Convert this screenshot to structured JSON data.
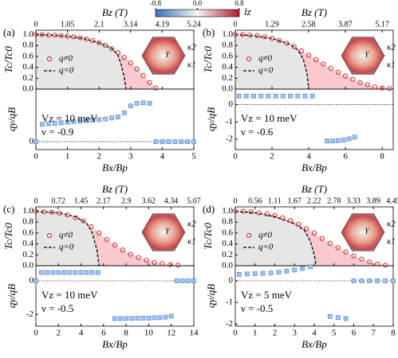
{
  "colorbar": {
    "label": "lz",
    "lim": [
      -0.8,
      0.8
    ],
    "ticks": [
      -0.8,
      {
        "value": 0,
        "label": "0.0"
      },
      0.8
    ]
  },
  "chart_data": [
    {
      "type": "scatter",
      "label": "(a)",
      "xlabel": "Bx/Bp",
      "x2label": "Bz (T)",
      "ylabel": "Tc/Tc0",
      "xlim": [
        0,
        5
      ],
      "xticks": [
        0,
        1,
        2,
        3,
        4,
        5
      ],
      "x2lim": [
        0,
        5.24
      ],
      "x2ticks": [
        0,
        1.05,
        2.1,
        3.14,
        4.19,
        5.24
      ],
      "ylim": [
        0,
        1.08
      ],
      "yticks": [
        {
          "value": 0,
          "label": "0.0"
        },
        {
          "value": 0.2,
          "label": "0.2"
        },
        {
          "value": 0.4,
          "label": "0.4"
        },
        {
          "value": 0.6,
          "label": "0.6"
        },
        {
          "value": 0.8,
          "label": "0.8"
        },
        {
          "value": 1,
          "label": "1.0"
        }
      ],
      "inset_labels": [
        "κ2",
        "γ",
        "κ1"
      ],
      "series": [
        {
          "name": "q≠0",
          "color": "#d62728",
          "x": [
            0,
            0.2,
            0.4,
            0.6,
            0.8,
            1.0,
            1.2,
            1.4,
            1.6,
            1.8,
            2.0,
            2.2,
            2.4,
            2.6,
            2.8,
            3.0,
            3.2,
            3.4,
            3.6,
            3.8
          ],
          "values": [
            1.0,
            1.0,
            0.99,
            0.99,
            0.98,
            0.97,
            0.96,
            0.94,
            0.92,
            0.89,
            0.85,
            0.8,
            0.74,
            0.67,
            0.58,
            0.48,
            0.37,
            0.25,
            0.12,
            0.02
          ]
        },
        {
          "name": "q=0",
          "color": "#000000",
          "x": [
            0,
            0.5,
            1,
            1.5,
            2,
            2.4,
            2.6,
            2.7,
            2.8,
            2.85
          ],
          "values": [
            1,
            0.99,
            0.97,
            0.93,
            0.85,
            0.75,
            0.62,
            0.45,
            0.2,
            0
          ]
        }
      ],
      "lower": {
        "ylabel": "qy/qB",
        "ylim": [
          -0.15,
          1.0
        ],
        "yticks": [
          0
        ],
        "color": "#5b8fd6",
        "x": [
          0,
          0.2,
          0.4,
          0.6,
          0.8,
          1.0,
          1.2,
          1.4,
          1.6,
          1.8,
          2.0,
          2.2,
          2.4,
          2.6,
          2.8,
          3.0,
          3.2,
          3.4,
          3.6,
          3.8,
          4.0,
          4.2,
          4.4,
          4.6,
          4.8,
          5.0
        ],
        "values": [
          0,
          0.33,
          0.34,
          0.35,
          0.36,
          0.37,
          0.38,
          0.39,
          0.4,
          0.41,
          0.42,
          0.43,
          0.45,
          0.47,
          0.55,
          0.68,
          0.73,
          0.74,
          0.73,
          0,
          0,
          0,
          0,
          0,
          0,
          0
        ]
      },
      "annotations": [
        "Vz = 10 meV",
        "ν = -0.9"
      ]
    },
    {
      "type": "scatter",
      "label": "(b)",
      "xlabel": "Bx/Bp",
      "x2label": "Bz (T)",
      "ylabel": "Tc/Tc0",
      "xlim": [
        0,
        8.6
      ],
      "xticks": [
        0,
        2,
        4,
        6,
        8
      ],
      "x2lim": [
        0,
        5.56
      ],
      "x2ticks": [
        0,
        1.29,
        2.58,
        3.87,
        5.17
      ],
      "ylim": [
        0,
        1.08
      ],
      "yticks": [
        {
          "value": 0,
          "label": "0.0"
        },
        {
          "value": 0.2,
          "label": "0.2"
        },
        {
          "value": 0.4,
          "label": "0.4"
        },
        {
          "value": 0.6,
          "label": "0.6"
        },
        {
          "value": 0.8,
          "label": "0.8"
        },
        {
          "value": 1,
          "label": "1.0"
        }
      ],
      "inset_labels": [
        "κ2",
        "γ",
        "κ1"
      ],
      "series": [
        {
          "name": "q≠0",
          "color": "#d62728",
          "x": [
            0,
            0.4,
            0.8,
            1.2,
            1.6,
            2.0,
            2.4,
            2.8,
            3.2,
            3.6,
            4.0,
            4.4,
            4.8,
            5.2,
            5.6,
            6.0,
            6.4,
            6.8,
            7.2,
            7.6,
            8.0,
            8.4
          ],
          "values": [
            1,
            1,
            0.99,
            0.98,
            0.96,
            0.93,
            0.89,
            0.84,
            0.78,
            0.7,
            0.62,
            0.54,
            0.46,
            0.38,
            0.31,
            0.24,
            0.18,
            0.12,
            0.08,
            0.04,
            0.02,
            0.01
          ]
        },
        {
          "name": "q=0",
          "color": "#000000",
          "x": [
            0,
            1,
            2,
            3,
            3.4,
            3.7,
            3.9,
            4.0
          ],
          "values": [
            1,
            0.98,
            0.93,
            0.82,
            0.72,
            0.55,
            0.3,
            0
          ]
        }
      ],
      "lower": {
        "ylabel": "qy/qB",
        "ylim": [
          -2.6,
          0.9
        ],
        "yticks": [
          -2,
          -1,
          0
        ],
        "color": "#5b8fd6",
        "x": [
          0.2,
          0.6,
          1.0,
          1.4,
          1.8,
          2.2,
          2.6,
          3.0,
          3.4,
          3.8,
          4.2,
          5.0,
          5.3,
          5.6,
          5.9,
          6.2,
          6.5
        ],
        "values": [
          0.5,
          0.5,
          0.5,
          0.5,
          0.5,
          0.5,
          0.5,
          0.5,
          0.5,
          0.5,
          0.5,
          -2.1,
          -2.1,
          -2.08,
          -2.05,
          -1.98,
          -1.88
        ]
      },
      "annotations": [
        "Vz = 10 meV",
        "ν = -0.6"
      ]
    },
    {
      "type": "scatter",
      "label": "(c)",
      "xlabel": "Bx/Bp",
      "x2label": "Bz (T)",
      "ylabel": "Tc/Tc0",
      "xlim": [
        0,
        14
      ],
      "xticks": [
        0,
        2,
        4,
        6,
        8,
        10,
        12,
        14
      ],
      "x2lim": [
        0,
        5.07
      ],
      "x2ticks": [
        0,
        0.72,
        1.45,
        2.17,
        2.9,
        3.62,
        4.34,
        5.07
      ],
      "ylim": [
        0,
        1.08
      ],
      "yticks": [
        {
          "value": 0,
          "label": "0.0"
        },
        {
          "value": 0.2,
          "label": "0.2"
        },
        {
          "value": 0.4,
          "label": "0.4"
        },
        {
          "value": 0.6,
          "label": "0.6"
        },
        {
          "value": 0.8,
          "label": "0.8"
        },
        {
          "value": 1,
          "label": "1.0"
        }
      ],
      "inset_labels": [
        "κ2",
        "γ",
        "κ1"
      ],
      "series": [
        {
          "name": "q≠0",
          "color": "#d62728",
          "x": [
            0,
            0.7,
            1.4,
            2.1,
            2.8,
            3.5,
            4.2,
            4.9,
            5.6,
            6.3,
            7.0,
            7.7,
            8.4,
            9.1,
            9.8,
            10.5,
            11.2,
            11.9,
            12.6
          ],
          "values": [
            1,
            0.99,
            0.98,
            0.96,
            0.93,
            0.88,
            0.82,
            0.72,
            0.6,
            0.48,
            0.38,
            0.29,
            0.21,
            0.15,
            0.1,
            0.06,
            0.04,
            0.02,
            0.01
          ]
        },
        {
          "name": "q=0",
          "color": "#000000",
          "x": [
            0,
            2,
            3.5,
            4.5,
            5.0,
            5.4,
            5.6
          ],
          "values": [
            1,
            0.97,
            0.9,
            0.78,
            0.6,
            0.3,
            0
          ]
        }
      ],
      "lower": {
        "ylabel": "qy/qB",
        "ylim": [
          -2.7,
          0.9
        ],
        "yticks": [
          -2,
          0
        ],
        "color": "#5b8fd6",
        "x": [
          0,
          0.5,
          1.0,
          1.5,
          2.0,
          2.5,
          3.0,
          3.5,
          4.0,
          4.5,
          5.0,
          5.5,
          7.0,
          7.5,
          8.0,
          8.5,
          9.0,
          9.5,
          10.0,
          10.5,
          11.0,
          11.5,
          12.0,
          12.5,
          13.0,
          13.5,
          14.0
        ],
        "values": [
          0,
          0.5,
          0.5,
          0.5,
          0.5,
          0.5,
          0.5,
          0.5,
          0.5,
          0.5,
          0.5,
          0.5,
          -2.25,
          -2.25,
          -2.24,
          -2.24,
          -2.23,
          -2.22,
          -2.22,
          -2.2,
          -2.19,
          -2.16,
          -2.1,
          0,
          0,
          0,
          0
        ]
      },
      "annotations": [
        "Vz = 10 meV",
        "ν = -0.5"
      ]
    },
    {
      "type": "scatter",
      "label": "(d)",
      "xlabel": "Bx/Bp",
      "x2label": "Bz (T)",
      "ylabel": "Tc/Tc0",
      "xlim": [
        0,
        8
      ],
      "xticks": [
        0,
        1,
        2,
        3,
        4,
        5,
        6,
        7,
        8
      ],
      "x2lim": [
        0,
        4.45
      ],
      "x2ticks": [
        0,
        0.56,
        1.11,
        1.67,
        2.22,
        2.78,
        3.33,
        3.89,
        4.45
      ],
      "ylim": [
        0,
        1.08
      ],
      "yticks": [
        {
          "value": 0,
          "label": "0.0"
        },
        {
          "value": 0.2,
          "label": "0.2"
        },
        {
          "value": 0.4,
          "label": "0.4"
        },
        {
          "value": 0.6,
          "label": "0.6"
        },
        {
          "value": 0.8,
          "label": "0.8"
        },
        {
          "value": 1,
          "label": "1.0"
        }
      ],
      "inset_labels": [
        "κ2",
        "γ",
        "κ1"
      ],
      "series": [
        {
          "name": "q≠0",
          "color": "#d62728",
          "x": [
            0,
            0.4,
            0.8,
            1.2,
            1.6,
            2.0,
            2.4,
            2.8,
            3.2,
            3.6,
            4.0,
            4.4,
            4.8,
            5.2,
            5.6,
            6.0,
            6.4,
            6.8,
            7.2,
            7.6
          ],
          "values": [
            1,
            1,
            0.99,
            0.97,
            0.95,
            0.92,
            0.88,
            0.83,
            0.76,
            0.68,
            0.6,
            0.5,
            0.41,
            0.33,
            0.25,
            0.18,
            0.12,
            0.07,
            0.03,
            0.01
          ]
        },
        {
          "name": "q=0",
          "color": "#000000",
          "x": [
            0,
            1,
            2,
            3,
            3.5,
            3.8,
            4.0,
            4.1
          ],
          "values": [
            1,
            0.97,
            0.9,
            0.77,
            0.65,
            0.45,
            0.2,
            0
          ]
        }
      ],
      "lower": {
        "ylabel": "qy/qB",
        "ylim": [
          -2.1,
          0.7
        ],
        "yticks": [
          -2,
          -1,
          0
        ],
        "color": "#5b8fd6",
        "x": [
          0.2,
          0.6,
          1.0,
          1.4,
          1.8,
          2.2,
          2.6,
          3.0,
          3.4,
          3.8,
          4.8,
          5.2,
          5.6,
          6.0,
          6.4,
          6.8,
          7.2,
          7.6,
          8.0
        ],
        "values": [
          0.3,
          0.32,
          0.33,
          0.35,
          0.37,
          0.4,
          0.45,
          0.5,
          0.57,
          0.65,
          -1.65,
          -1.7,
          -1.75,
          0,
          0,
          0,
          0,
          0,
          0
        ]
      },
      "annotations": [
        "Vz = 5 meV",
        "ν = -0.5"
      ]
    }
  ]
}
